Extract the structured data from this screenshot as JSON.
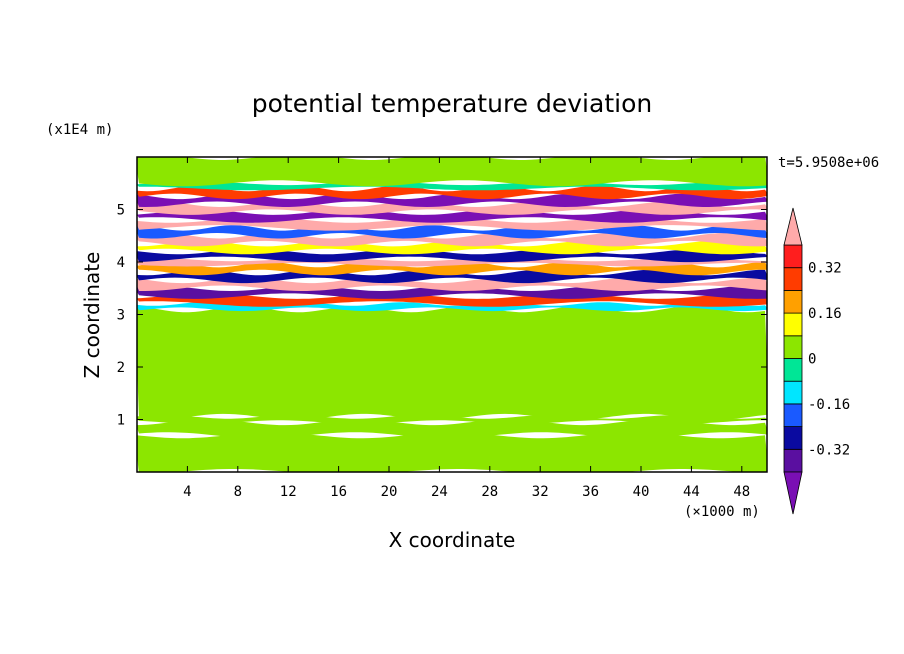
{
  "chart_data": {
    "type": "heatmap",
    "title": "potential temperature deviation",
    "xlabel": "X coordinate",
    "ylabel": "Z coordinate",
    "x_unit": "(×1000 m)",
    "y_unit": "(x1E4 m)",
    "time_label": "t=5.9508e+06",
    "xlim": [
      0,
      50
    ],
    "ylim": [
      0,
      6
    ],
    "x_ticks": [
      "4",
      "8",
      "12",
      "16",
      "20",
      "24",
      "28",
      "32",
      "36",
      "40",
      "44",
      "48"
    ],
    "y_ticks": [
      "1",
      "2",
      "3",
      "4",
      "5"
    ],
    "x_tick_values": [
      4,
      8,
      12,
      16,
      20,
      24,
      28,
      32,
      36,
      40,
      44,
      48
    ],
    "y_tick_values": [
      1,
      2,
      3,
      4,
      5
    ],
    "colorbar": {
      "labels": [
        "0.32",
        "0.16",
        "0",
        "-0.16",
        "-0.32"
      ],
      "label_values": [
        0.32,
        0.16,
        0,
        -0.16,
        -0.32
      ],
      "levels": [
        -0.4,
        -0.32,
        -0.24,
        -0.16,
        -0.08,
        0,
        0.08,
        0.16,
        0.24,
        0.32,
        0.4
      ],
      "colors": [
        "#7a0fb4",
        "#5a0fa0",
        "#0a0aa0",
        "#1a5aff",
        "#00e6ff",
        "#00e696",
        "#8ce600",
        "#ffff00",
        "#ffa000",
        "#ff3c00",
        "#ff1e1e",
        "#ffaaaa"
      ],
      "extend": "both"
    },
    "layers": [
      {
        "z": [
          0.0,
          0.7
        ],
        "value": 0.02
      },
      {
        "z": [
          0.7,
          0.95
        ],
        "value": 0.04
      },
      {
        "z": [
          0.95,
          1.05
        ],
        "value": 0.01
      },
      {
        "z": [
          1.05,
          3.1
        ],
        "value": 0.03
      },
      {
        "z": [
          3.1,
          3.2
        ],
        "value": -0.1
      },
      {
        "z": [
          3.2,
          3.35
        ],
        "value": 0.3
      },
      {
        "z": [
          3.35,
          3.5
        ],
        "value": -0.35
      },
      {
        "z": [
          3.5,
          3.65
        ],
        "value": 0.45
      },
      {
        "z": [
          3.65,
          3.8
        ],
        "value": -0.3
      },
      {
        "z": [
          3.8,
          3.95
        ],
        "value": 0.2
      },
      {
        "z": [
          3.95,
          4.05
        ],
        "value": 0.45
      },
      {
        "z": [
          4.05,
          4.2
        ],
        "value": -0.3
      },
      {
        "z": [
          4.2,
          4.35
        ],
        "value": 0.1
      },
      {
        "z": [
          4.35,
          4.5
        ],
        "value": 0.45
      },
      {
        "z": [
          4.5,
          4.65
        ],
        "value": -0.2
      },
      {
        "z": [
          4.65,
          4.8
        ],
        "value": 0.45
      },
      {
        "z": [
          4.8,
          4.95
        ],
        "value": -0.42
      },
      {
        "z": [
          4.95,
          5.1
        ],
        "value": 0.45
      },
      {
        "z": [
          5.1,
          5.25
        ],
        "value": -0.42
      },
      {
        "z": [
          5.25,
          5.4
        ],
        "value": 0.25
      },
      {
        "z": [
          5.4,
          5.5
        ],
        "value": -0.05
      },
      {
        "z": [
          5.5,
          6.0
        ],
        "value": 0.04
      }
    ]
  }
}
